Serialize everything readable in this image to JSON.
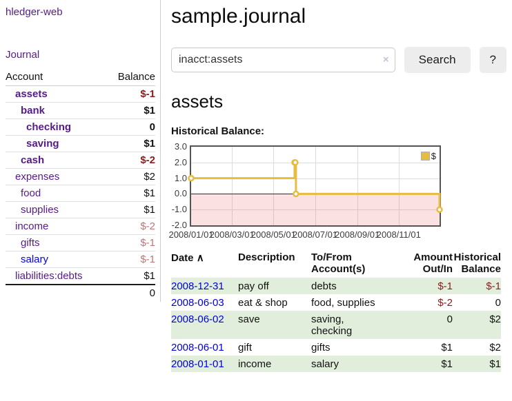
{
  "app": {
    "title": "hledger-web",
    "nav_journal": "Journal"
  },
  "colors": {
    "link_purple": "#551A8B",
    "link_blue": "#0000EE",
    "date_link_blue": "#0000dd",
    "negative_dark": "#8b1c1c",
    "negative_muted": "#bd7578",
    "row_green": "#e1eedb",
    "series_gold": "#E8BC40",
    "zero_line_red": "#8b0000",
    "negative_region_pink": "rgba(235,90,90,0.18)",
    "chart_border": "#545454"
  },
  "sidebar": {
    "header": {
      "account": "Account",
      "balance": "Balance"
    },
    "accounts": [
      {
        "label": "assets",
        "depth": 1,
        "bold": true,
        "balance": "$-1",
        "balance_style": "neg-dark",
        "link_style": "purple"
      },
      {
        "label": "bank",
        "depth": 2,
        "bold": true,
        "balance": "$1",
        "balance_style": "black",
        "link_style": "purple"
      },
      {
        "label": "checking",
        "depth": 3,
        "bold": true,
        "balance": "0",
        "balance_style": "black",
        "link_style": "purple"
      },
      {
        "label": "saving",
        "depth": 3,
        "bold": true,
        "balance": "$1",
        "balance_style": "black",
        "link_style": "purple"
      },
      {
        "label": "cash",
        "depth": 2,
        "bold": true,
        "balance": "$-2",
        "balance_style": "neg-dark",
        "link_style": "purple"
      },
      {
        "label": "expenses",
        "depth": 1,
        "bold": false,
        "balance": "$2",
        "balance_style": "black",
        "link_style": "purple"
      },
      {
        "label": "food",
        "depth": 2,
        "bold": false,
        "balance": "$1",
        "balance_style": "black",
        "link_style": "purple"
      },
      {
        "label": "supplies",
        "depth": 2,
        "bold": false,
        "balance": "$1",
        "balance_style": "black",
        "link_style": "purple"
      },
      {
        "label": "income",
        "depth": 1,
        "bold": false,
        "balance": "$-2",
        "balance_style": "neg-muted",
        "link_style": "purple"
      },
      {
        "label": "gifts",
        "depth": 2,
        "bold": false,
        "balance": "$-1",
        "balance_style": "neg-muted",
        "link_style": "purple"
      },
      {
        "label": "salary",
        "depth": 2,
        "bold": false,
        "balance": "$-1",
        "balance_style": "neg-muted",
        "link_style": "blue"
      },
      {
        "label": "liabilities:debts",
        "depth": 1,
        "bold": false,
        "balance": "$1",
        "balance_style": "black",
        "link_style": "purple"
      }
    ],
    "total": "0"
  },
  "main": {
    "title": "sample.journal",
    "search": {
      "value": "inacct:assets",
      "clear_icon": "×",
      "button": "Search",
      "help_button": "?"
    },
    "account_heading": "assets",
    "chart_label": "Historical Balance:"
  },
  "chart_data": {
    "type": "line",
    "step": true,
    "title": "Historical Balance",
    "x_start": "2008-01-01",
    "x_end": "2008-12-31",
    "ylim": [
      -2,
      3
    ],
    "yticks": [
      3.0,
      2.0,
      1.0,
      0.0,
      -1.0,
      -2.0
    ],
    "ytick_labels": [
      "3.0",
      "2.0",
      "1.0",
      "0.0",
      "-1.0",
      "-2.0"
    ],
    "xticks": [
      "2008-01-01",
      "2008-03-01",
      "2008-05-01",
      "2008-07-01",
      "2008-09-01",
      "2008-11-01"
    ],
    "xtick_labels": [
      "2008/01/01",
      "2008/03/01",
      "2008/05/01",
      "2008/07/01",
      "2008/09/01",
      "2008/11/01"
    ],
    "grid": true,
    "negative_region_shaded": true,
    "legend_position": "top-right",
    "series": [
      {
        "name": "$",
        "points": [
          [
            "2008-01-01",
            1
          ],
          [
            "2008-06-01",
            2
          ],
          [
            "2008-06-02",
            2
          ],
          [
            "2008-06-03",
            0
          ],
          [
            "2008-12-31",
            -1
          ]
        ]
      }
    ]
  },
  "register": {
    "sort_icon": "∧",
    "columns": {
      "date": "Date",
      "description": "Description",
      "accounts": "To/From\nAccount(s)",
      "amount": "Amount\nOut/In",
      "balance": "Historical\nBalance"
    },
    "rows": [
      {
        "date": "2008-12-31",
        "description": "pay off",
        "accounts": "debts",
        "amount": "$-1",
        "balance": "$-1"
      },
      {
        "date": "2008-06-03",
        "description": "eat & shop",
        "accounts": "food, supplies",
        "amount": "$-2",
        "balance": "0"
      },
      {
        "date": "2008-06-02",
        "description": "save",
        "accounts": "saving,\nchecking",
        "amount": "0",
        "balance": "$2"
      },
      {
        "date": "2008-06-01",
        "description": "gift",
        "accounts": "gifts",
        "amount": "$1",
        "balance": "$2"
      },
      {
        "date": "2008-01-01",
        "description": "income",
        "accounts": "salary",
        "amount": "$1",
        "balance": "$1"
      }
    ]
  }
}
